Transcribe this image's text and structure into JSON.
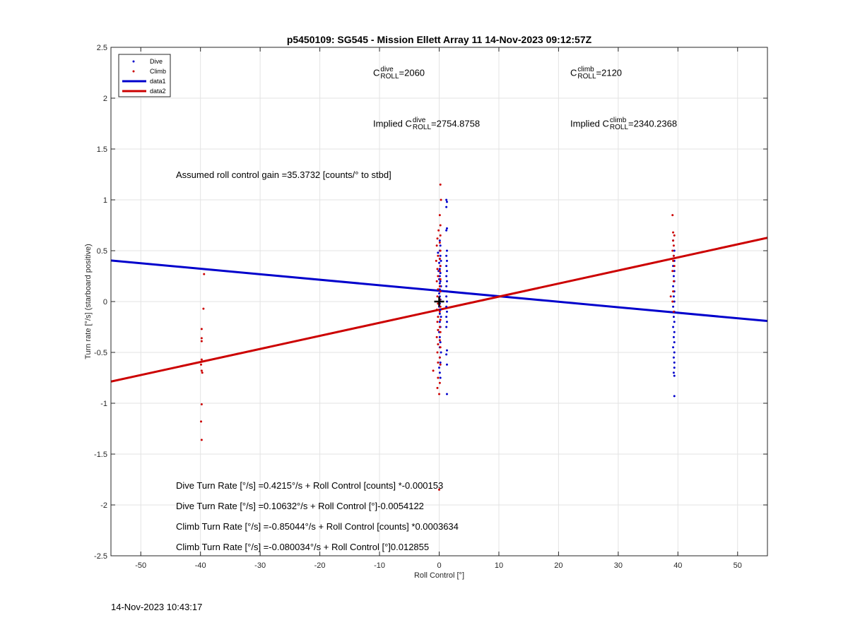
{
  "chart_data": {
    "type": "scatter",
    "title": "p5450109: SG545 - Mission Ellett Array 11 14-Nov-2023 09:12:57Z",
    "xlabel": "Roll Control [°]",
    "ylabel": "Turn rate [°/s] (starboard positive)",
    "xlim": [
      -55,
      55
    ],
    "ylim": [
      -2.5,
      2.5
    ],
    "xticks": [
      -50,
      -40,
      -30,
      -20,
      -10,
      0,
      10,
      20,
      30,
      40,
      50
    ],
    "yticks": [
      -2.5,
      -2,
      -1.5,
      -1,
      -0.5,
      0,
      0.5,
      1,
      1.5,
      2,
      2.5
    ],
    "grid": true,
    "legend_position": "top-left",
    "legend": [
      {
        "label": "Dive",
        "type": "marker",
        "color": "#0000cc"
      },
      {
        "label": "Climb",
        "type": "marker",
        "color": "#cc0000"
      },
      {
        "label": "data1",
        "type": "line",
        "color": "#0000cc"
      },
      {
        "label": "data2",
        "type": "line",
        "color": "#cc0000"
      }
    ],
    "series": [
      {
        "name": "Dive",
        "kind": "points",
        "color": "#0000cc",
        "points": [
          [
            0.1,
            0.6
          ],
          [
            0.2,
            0.55
          ],
          [
            0.1,
            0.5
          ],
          [
            -0.2,
            0.48
          ],
          [
            0.2,
            0.45
          ],
          [
            0.1,
            0.42
          ],
          [
            0.3,
            0.4
          ],
          [
            0.0,
            0.38
          ],
          [
            0.2,
            0.35
          ],
          [
            0.1,
            0.32
          ],
          [
            -0.1,
            0.3
          ],
          [
            0.2,
            0.28
          ],
          [
            0.1,
            0.25
          ],
          [
            0.0,
            0.22
          ],
          [
            0.2,
            0.2
          ],
          [
            0.1,
            0.18
          ],
          [
            0.3,
            0.15
          ],
          [
            0.1,
            0.12
          ],
          [
            0.2,
            0.1
          ],
          [
            0.0,
            0.08
          ],
          [
            0.1,
            0.05
          ],
          [
            0.2,
            0.02
          ],
          [
            0.1,
            -0.02
          ],
          [
            0.0,
            -0.05
          ],
          [
            0.2,
            -0.08
          ],
          [
            0.1,
            -0.12
          ],
          [
            0.3,
            -0.15
          ],
          [
            0.1,
            -0.2
          ],
          [
            0.2,
            -0.25
          ],
          [
            0.0,
            -0.3
          ],
          [
            0.1,
            -0.35
          ],
          [
            0.2,
            -0.4
          ],
          [
            0.1,
            -0.45
          ],
          [
            0.3,
            -0.5
          ],
          [
            0.1,
            -0.55
          ],
          [
            0.2,
            -0.6
          ],
          [
            0.0,
            -0.65
          ],
          [
            0.1,
            -0.7
          ],
          [
            0.2,
            -0.75
          ],
          [
            1.2,
            1.0
          ],
          [
            1.3,
            0.98
          ],
          [
            1.2,
            0.93
          ],
          [
            1.3,
            0.72
          ],
          [
            1.2,
            0.7
          ],
          [
            1.3,
            0.5
          ],
          [
            1.2,
            0.45
          ],
          [
            1.3,
            0.4
          ],
          [
            1.2,
            0.35
          ],
          [
            1.3,
            0.3
          ],
          [
            1.2,
            0.25
          ],
          [
            1.3,
            0.2
          ],
          [
            1.2,
            0.15
          ],
          [
            1.3,
            0.1
          ],
          [
            1.2,
            0.05
          ],
          [
            1.3,
            0.0
          ],
          [
            1.2,
            -0.05
          ],
          [
            1.3,
            -0.1
          ],
          [
            1.2,
            -0.15
          ],
          [
            1.3,
            -0.2
          ],
          [
            1.2,
            -0.25
          ],
          [
            1.3,
            -0.48
          ],
          [
            1.2,
            -0.52
          ],
          [
            1.3,
            -0.62
          ],
          [
            1.3,
            -0.91
          ],
          [
            39.2,
            0.6
          ],
          [
            39.4,
            0.5
          ],
          [
            39.3,
            0.45
          ],
          [
            39.4,
            0.4
          ],
          [
            39.2,
            0.35
          ],
          [
            39.4,
            0.3
          ],
          [
            39.3,
            0.25
          ],
          [
            39.4,
            0.2
          ],
          [
            39.2,
            0.15
          ],
          [
            39.4,
            0.1
          ],
          [
            39.3,
            0.05
          ],
          [
            39.4,
            0.0
          ],
          [
            39.2,
            -0.05
          ],
          [
            39.4,
            -0.1
          ],
          [
            39.3,
            -0.15
          ],
          [
            39.4,
            -0.2
          ],
          [
            39.2,
            -0.25
          ],
          [
            39.4,
            -0.3
          ],
          [
            39.3,
            -0.35
          ],
          [
            39.4,
            -0.4
          ],
          [
            39.2,
            -0.45
          ],
          [
            39.4,
            -0.5
          ],
          [
            39.3,
            -0.55
          ],
          [
            39.4,
            -0.6
          ],
          [
            39.4,
            -0.65
          ],
          [
            39.3,
            -0.7
          ],
          [
            39.4,
            -0.73
          ],
          [
            39.4,
            -0.93
          ]
        ]
      },
      {
        "name": "Climb",
        "kind": "points",
        "color": "#cc0000",
        "points": [
          [
            -39.4,
            0.27
          ],
          [
            -39.5,
            -0.07
          ],
          [
            -39.8,
            -0.27
          ],
          [
            -39.8,
            -0.36
          ],
          [
            -39.8,
            -0.39
          ],
          [
            -39.8,
            -0.57
          ],
          [
            -39.9,
            -0.62
          ],
          [
            -39.8,
            -0.68
          ],
          [
            -39.7,
            -0.7
          ],
          [
            -39.8,
            -1.01
          ],
          [
            -39.9,
            -1.18
          ],
          [
            -39.8,
            -1.36
          ],
          [
            0.2,
            1.15
          ],
          [
            0.3,
            1.0
          ],
          [
            0.1,
            0.85
          ],
          [
            0.2,
            0.75
          ],
          [
            -0.1,
            0.7
          ],
          [
            0.2,
            0.65
          ],
          [
            -0.3,
            0.62
          ],
          [
            0.1,
            0.58
          ],
          [
            -0.4,
            0.55
          ],
          [
            0.2,
            0.5
          ],
          [
            -0.2,
            0.45
          ],
          [
            0.1,
            0.42
          ],
          [
            -0.5,
            0.4
          ],
          [
            0.2,
            0.35
          ],
          [
            -0.3,
            0.32
          ],
          [
            0.1,
            0.3
          ],
          [
            -0.2,
            0.25
          ],
          [
            0.2,
            0.22
          ],
          [
            -0.4,
            0.2
          ],
          [
            0.1,
            0.15
          ],
          [
            -0.2,
            0.12
          ],
          [
            0.2,
            0.1
          ],
          [
            -0.3,
            0.05
          ],
          [
            0.1,
            0.02
          ],
          [
            -0.2,
            -0.02
          ],
          [
            0.2,
            -0.05
          ],
          [
            -0.4,
            -0.08
          ],
          [
            0.1,
            -0.1
          ],
          [
            -0.2,
            -0.15
          ],
          [
            0.2,
            -0.18
          ],
          [
            -0.3,
            -0.2
          ],
          [
            0.1,
            -0.25
          ],
          [
            -0.2,
            -0.28
          ],
          [
            0.2,
            -0.3
          ],
          [
            -0.4,
            -0.35
          ],
          [
            0.1,
            -0.38
          ],
          [
            -0.2,
            -0.42
          ],
          [
            0.2,
            -0.45
          ],
          [
            -0.3,
            -0.5
          ],
          [
            0.1,
            -0.55
          ],
          [
            -0.2,
            -0.6
          ],
          [
            0.2,
            -0.62
          ],
          [
            -1.0,
            -0.68
          ],
          [
            -0.2,
            -0.75
          ],
          [
            0.1,
            -0.8
          ],
          [
            -0.3,
            -0.85
          ],
          [
            0.0,
            -0.91
          ],
          [
            0.0,
            -1.85
          ],
          [
            39.1,
            0.85
          ],
          [
            39.2,
            0.68
          ],
          [
            39.4,
            0.65
          ],
          [
            39.2,
            0.6
          ],
          [
            39.3,
            0.55
          ],
          [
            39.1,
            0.5
          ],
          [
            39.3,
            0.45
          ],
          [
            39.2,
            0.4
          ],
          [
            39.4,
            0.35
          ],
          [
            39.1,
            0.3
          ],
          [
            39.3,
            0.2
          ],
          [
            39.2,
            0.1
          ],
          [
            38.8,
            0.05
          ],
          [
            39.1,
            0.0
          ],
          [
            39.3,
            -0.1
          ]
        ]
      },
      {
        "name": "data1",
        "kind": "line",
        "color": "#0000cc",
        "x": [
          -55,
          55
        ],
        "y": [
          0.404,
          -0.1914
        ]
      },
      {
        "name": "data2",
        "kind": "line",
        "color": "#cc0000",
        "x": [
          -55,
          55
        ],
        "y": [
          -0.7871,
          0.6267
        ]
      }
    ],
    "marker_point": {
      "x": 0,
      "y": 0
    }
  },
  "annotations": {
    "c_dive_label": "C",
    "c_dive_sup": "dive",
    "c_dive_sub": "ROLL",
    "c_dive_value": "=2060",
    "c_climb_label": "C",
    "c_climb_sup": "climb",
    "c_climb_sub": "ROLL",
    "c_climb_value": "=2120",
    "implied_dive_prefix": "Implied C",
    "implied_dive_sup": "dive",
    "implied_dive_sub": "ROLL",
    "implied_dive_value": "=2754.8758",
    "implied_climb_prefix": "Implied C",
    "implied_climb_sup": "climb",
    "implied_climb_sub": "ROLL",
    "implied_climb_value": "=2340.2368",
    "gain": "Assumed roll control gain =35.3732 [counts/° to stbd]",
    "eq1": "Dive Turn Rate [°/s] =0.4215°/s + Roll Control [counts] *-0.000153",
    "eq2": "Dive Turn Rate [°/s] =0.10632°/s + Roll Control [°]-0.0054122",
    "eq3": "Climb Turn Rate [°/s] =-0.85044°/s + Roll Control [counts] *0.0003634",
    "eq4": "Climb Turn Rate [°/s] =-0.080034°/s + Roll Control [°]0.012855"
  },
  "timestamp": "14-Nov-2023 10:43:17"
}
